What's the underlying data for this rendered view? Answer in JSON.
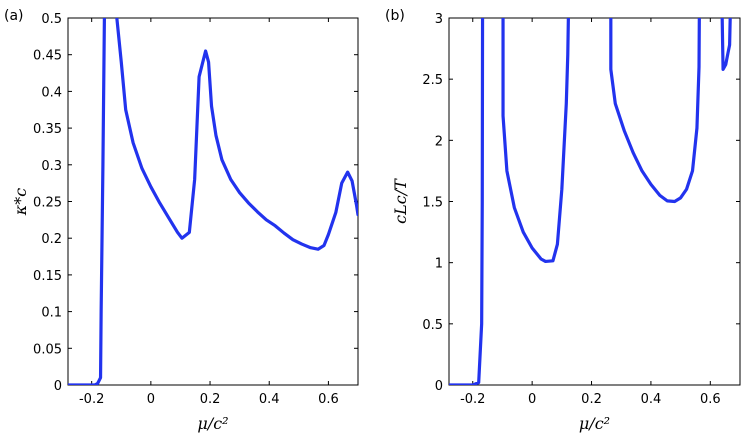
{
  "chart_data": [
    {
      "type": "line",
      "panel_label": "(a)",
      "xlabel": "μ/c²",
      "ylabel": "κ*c",
      "xlim": [
        -0.28,
        0.7
      ],
      "ylim": [
        0,
        0.5
      ],
      "xticks": [
        -0.2,
        0,
        0.2,
        0.4,
        0.6
      ],
      "xtick_labels": [
        "-0.2",
        "0",
        "0.2",
        "0.4",
        "0.6"
      ],
      "yticks": [
        0,
        0.05,
        0.1,
        0.15,
        0.2,
        0.25,
        0.3,
        0.35,
        0.4,
        0.45,
        0.5
      ],
      "ytick_labels": [
        "0",
        "0.05",
        "0.1",
        "0.15",
        "0.2",
        "0.25",
        "0.3",
        "0.35",
        "0.4",
        "0.45",
        "0.5"
      ],
      "grid": false,
      "color": "#2233ee",
      "series": [
        {
          "segments": [
            [
              [
                -0.28,
                0
              ],
              [
                -0.19,
                0
              ],
              [
                -0.18,
                0.002
              ],
              [
                -0.17,
                0.01
              ],
              [
                -0.168,
                0.1
              ],
              [
                -0.162,
                0.3
              ],
              [
                -0.157,
                0.5
              ]
            ],
            [
              [
                -0.115,
                0.5
              ],
              [
                -0.1,
                0.44
              ],
              [
                -0.085,
                0.375
              ],
              [
                -0.06,
                0.33
              ],
              [
                -0.03,
                0.295
              ],
              [
                0.0,
                0.27
              ],
              [
                0.03,
                0.248
              ],
              [
                0.06,
                0.228
              ],
              [
                0.09,
                0.208
              ],
              [
                0.105,
                0.2
              ],
              [
                0.13,
                0.208
              ],
              [
                0.148,
                0.28
              ],
              [
                0.163,
                0.42
              ],
              [
                0.185,
                0.455
              ],
              [
                0.195,
                0.44
              ],
              [
                0.205,
                0.38
              ],
              [
                0.22,
                0.34
              ],
              [
                0.24,
                0.307
              ],
              [
                0.27,
                0.28
              ],
              [
                0.3,
                0.262
              ],
              [
                0.33,
                0.248
              ],
              [
                0.36,
                0.236
              ],
              [
                0.39,
                0.225
              ],
              [
                0.42,
                0.217
              ],
              [
                0.45,
                0.207
              ],
              [
                0.48,
                0.198
              ],
              [
                0.51,
                0.192
              ],
              [
                0.54,
                0.187
              ],
              [
                0.565,
                0.185
              ],
              [
                0.585,
                0.19
              ],
              [
                0.6,
                0.205
              ],
              [
                0.625,
                0.235
              ],
              [
                0.645,
                0.275
              ],
              [
                0.665,
                0.29
              ],
              [
                0.68,
                0.278
              ],
              [
                0.695,
                0.245
              ],
              [
                0.7,
                0.232
              ]
            ]
          ]
        }
      ]
    },
    {
      "type": "line",
      "panel_label": "(b)",
      "xlabel": "μ/c²",
      "ylabel": "cLc/T",
      "xlim": [
        -0.28,
        0.7
      ],
      "ylim": [
        0,
        3
      ],
      "xticks": [
        -0.2,
        0,
        0.2,
        0.4,
        0.6
      ],
      "xtick_labels": [
        "-0.2",
        "0",
        "0.2",
        "0.4",
        "0.6"
      ],
      "yticks": [
        0,
        0.5,
        1,
        1.5,
        2,
        2.5,
        3
      ],
      "ytick_labels": [
        "0",
        "0.5",
        "1",
        "1.5",
        "2",
        "2.5",
        "3"
      ],
      "grid": false,
      "color": "#2233ee",
      "series": [
        {
          "segments": [
            [
              [
                -0.28,
                0
              ],
              [
                -0.2,
                0
              ],
              [
                -0.18,
                0.02
              ],
              [
                -0.17,
                0.5
              ],
              [
                -0.168,
                1.5
              ],
              [
                -0.167,
                3
              ]
            ],
            [
              [
                -0.098,
                3
              ],
              [
                -0.098,
                2.2
              ],
              [
                -0.085,
                1.75
              ],
              [
                -0.06,
                1.45
              ],
              [
                -0.03,
                1.25
              ],
              [
                0.0,
                1.12
              ],
              [
                0.03,
                1.03
              ],
              [
                0.045,
                1.01
              ],
              [
                0.07,
                1.015
              ],
              [
                0.085,
                1.15
              ],
              [
                0.1,
                1.6
              ],
              [
                0.115,
                2.3
              ],
              [
                0.12,
                2.7
              ],
              [
                0.122,
                3
              ]
            ],
            [
              [
                0.265,
                3
              ],
              [
                0.265,
                2.58
              ],
              [
                0.28,
                2.3
              ],
              [
                0.31,
                2.08
              ],
              [
                0.34,
                1.9
              ],
              [
                0.37,
                1.75
              ],
              [
                0.4,
                1.64
              ],
              [
                0.43,
                1.55
              ],
              [
                0.455,
                1.505
              ],
              [
                0.48,
                1.5
              ],
              [
                0.5,
                1.53
              ],
              [
                0.52,
                1.6
              ],
              [
                0.54,
                1.75
              ],
              [
                0.555,
                2.1
              ],
              [
                0.562,
                2.6
              ],
              [
                0.563,
                3
              ]
            ],
            [
              [
                0.64,
                3
              ],
              [
                0.643,
                2.58
              ],
              [
                0.652,
                2.62
              ],
              [
                0.66,
                2.72
              ],
              [
                0.665,
                2.78
              ],
              [
                0.667,
                3
              ]
            ]
          ]
        }
      ]
    }
  ]
}
